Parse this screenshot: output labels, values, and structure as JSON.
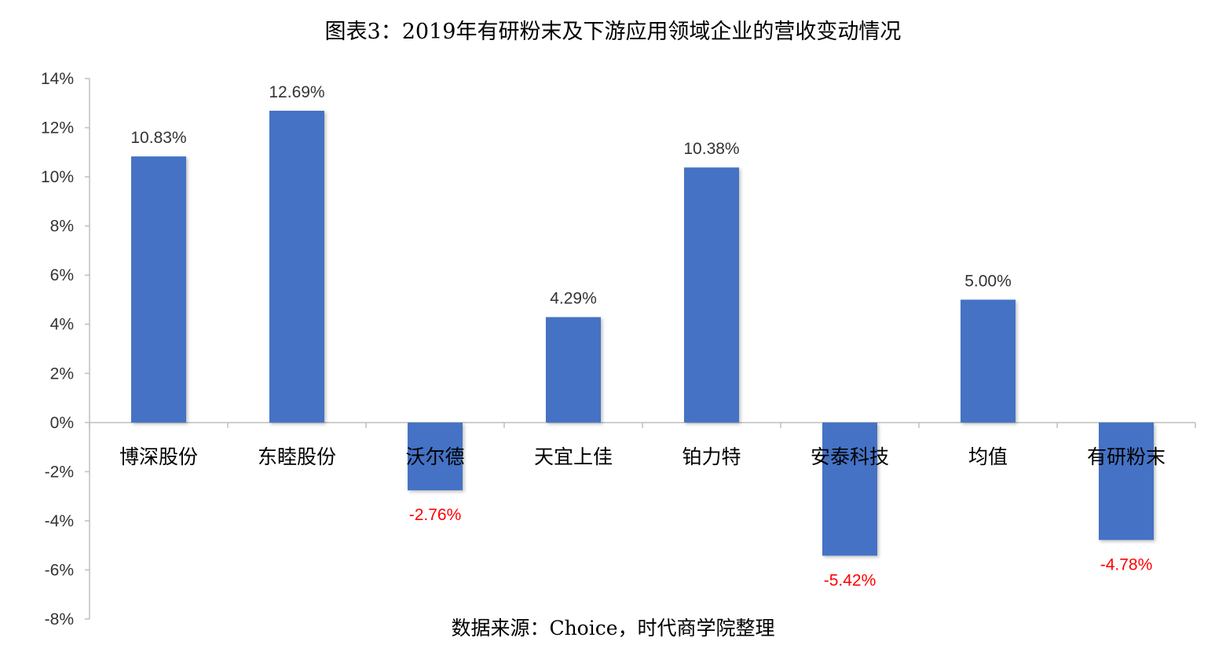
{
  "chart_data": {
    "type": "bar",
    "title": "图表3：2019年有研粉末及下游应用领域企业的营收变动情况",
    "source": "数据来源：Choice，时代商学院整理",
    "categories": [
      "博深股份",
      "东睦股份",
      "沃尔德",
      "天宜上佳",
      "铂力特",
      "安泰科技",
      "均值",
      "有研粉末"
    ],
    "values": [
      10.83,
      12.69,
      -2.76,
      4.29,
      10.38,
      -5.42,
      5.0,
      -4.78
    ],
    "data_labels": [
      "10.83%",
      "12.69%",
      "-2.76%",
      "4.29%",
      "10.38%",
      "-5.42%",
      "5.00%",
      "-4.78%"
    ],
    "ylim": [
      -8,
      14
    ],
    "yticks": [
      14,
      12,
      10,
      8,
      6,
      4,
      2,
      0,
      -2,
      -4,
      -6,
      -8
    ],
    "ytick_labels": [
      "14%",
      "12%",
      "10%",
      "8%",
      "6%",
      "4%",
      "2%",
      "0%",
      "-2%",
      "-4%",
      "-6%",
      "-8%"
    ],
    "xlabel": "",
    "ylabel": "",
    "grid": false,
    "legend": "none",
    "colors": {
      "bar": "#4472C4",
      "positive_label": "#333333",
      "negative_label": "#FF0000",
      "axis": "#BFBFBF"
    }
  }
}
